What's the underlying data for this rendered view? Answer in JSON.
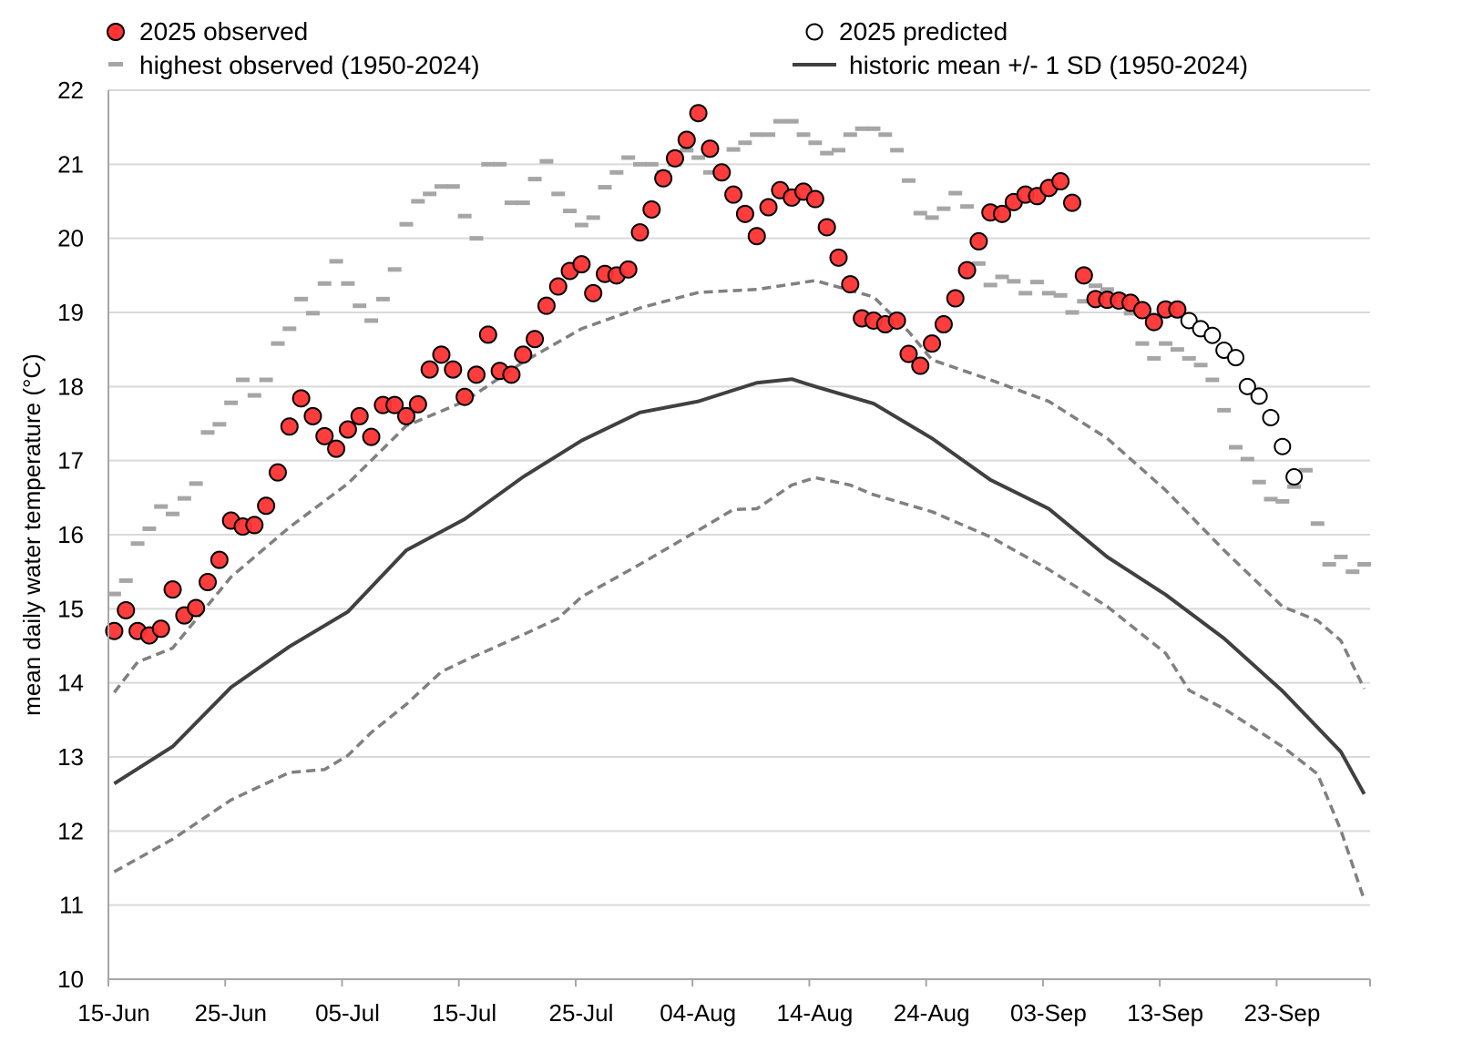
{
  "chart_data": {
    "type": "scatter",
    "title": "",
    "xlabel": "",
    "ylabel": "mean daily water temperature (°C)",
    "ylim": [
      10,
      22
    ],
    "yticks": [
      "10",
      "11",
      "12",
      "13",
      "14",
      "15",
      "16",
      "17",
      "18",
      "19",
      "20",
      "21",
      "22"
    ],
    "xlim": [
      "15-Jun",
      "30-Sep"
    ],
    "xticks": [
      "15-Jun",
      "25-Jun",
      "05-Jul",
      "15-Jul",
      "25-Jul",
      "04-Aug",
      "14-Aug",
      "24-Aug",
      "03-Sep",
      "13-Sep",
      "23-Sep"
    ],
    "grid": "horizontal",
    "legend_placement": "top",
    "colors": {
      "observed": "#ff3333",
      "highest": "#a6a6a6",
      "mean": "#404040",
      "sd": "#808080",
      "grid": "#d9d9d9"
    },
    "series": [
      {
        "name": "2025 observed",
        "kind": "markers-filled",
        "first_date": "15-Jun",
        "last_date": "14-Sep",
        "values": [
          14.7,
          14.98,
          14.7,
          14.64,
          14.73,
          15.26,
          14.91,
          15.01,
          15.36,
          15.66,
          16.19,
          16.11,
          16.13,
          16.39,
          16.84,
          17.46,
          17.84,
          17.6,
          17.33,
          17.16,
          17.42,
          17.6,
          17.32,
          17.75,
          17.75,
          17.6,
          17.76,
          18.23,
          18.43,
          18.23,
          17.86,
          18.16,
          18.7,
          18.21,
          18.16,
          18.43,
          18.64,
          19.09,
          19.35,
          19.56,
          19.65,
          19.26,
          19.52,
          19.5,
          19.58,
          20.08,
          20.39,
          20.81,
          21.08,
          21.33,
          21.69,
          21.21,
          20.89,
          20.59,
          20.33,
          20.03,
          20.42,
          20.65,
          20.55,
          20.63,
          20.53,
          20.15,
          19.74,
          19.38,
          18.92,
          18.89,
          18.84,
          18.89,
          18.44,
          18.28,
          18.58,
          18.84,
          19.19,
          19.57,
          19.96,
          20.35,
          20.33,
          20.49,
          20.59,
          20.57,
          20.68,
          20.77,
          20.48,
          19.5,
          19.18,
          19.17,
          19.16,
          19.13,
          19.03,
          18.87,
          19.04,
          19.04
        ]
      },
      {
        "name": "2025 predicted",
        "kind": "markers-open",
        "first_date": "15-Sep",
        "last_date": "24-Sep",
        "values": [
          18.89,
          18.78,
          18.69,
          18.49,
          18.39,
          18.0,
          17.87,
          17.58,
          17.19,
          16.78
        ]
      },
      {
        "name": "highest observed (1950-2024)",
        "kind": "dash-markers",
        "first_date": "15-Jun",
        "last_date": "30-Sep",
        "values": [
          15.2,
          15.38,
          15.88,
          16.08,
          16.38,
          16.28,
          16.49,
          16.69,
          17.38,
          17.49,
          17.78,
          18.09,
          17.88,
          18.09,
          18.58,
          18.78,
          19.18,
          18.99,
          19.39,
          19.69,
          19.39,
          19.09,
          18.89,
          19.18,
          19.58,
          20.19,
          20.5,
          20.6,
          20.7,
          20.7,
          20.3,
          20.0,
          21.0,
          21.0,
          20.48,
          20.48,
          20.8,
          21.04,
          20.6,
          20.37,
          20.18,
          20.28,
          20.69,
          20.89,
          21.09,
          21.0,
          21.0,
          20.89,
          21.0,
          21.19,
          21.09,
          20.89,
          20.89,
          21.2,
          21.29,
          21.4,
          21.4,
          21.58,
          21.58,
          21.4,
          21.29,
          21.15,
          21.19,
          21.4,
          21.48,
          21.48,
          21.4,
          21.19,
          20.78,
          20.34,
          20.28,
          20.4,
          20.61,
          20.43,
          19.66,
          19.37,
          19.48,
          19.42,
          19.26,
          19.41,
          19.26,
          19.23,
          19.0,
          19.15,
          19.36,
          19.31,
          19.23,
          18.99,
          18.58,
          18.38,
          18.58,
          18.5,
          18.38,
          18.29,
          18.09,
          17.68,
          17.18,
          17.02,
          16.71,
          16.48,
          16.45,
          16.65,
          16.87,
          16.15,
          15.6,
          15.7,
          15.5,
          15.6
        ]
      },
      {
        "name": "historic mean +/- 1 SD (1950-2024)",
        "kind": "solid-line",
        "points": [
          [
            "15-Jun",
            12.64
          ],
          [
            "20-Jun",
            13.14
          ],
          [
            "25-Jun",
            13.94
          ],
          [
            "30-Jun",
            14.49
          ],
          [
            "05-Jul",
            14.96
          ],
          [
            "10-Jul",
            15.79
          ],
          [
            "15-Jul",
            16.21
          ],
          [
            "20-Jul",
            16.78
          ],
          [
            "25-Jul",
            17.27
          ],
          [
            "30-Jul",
            17.65
          ],
          [
            "04-Aug",
            17.8
          ],
          [
            "09-Aug",
            18.05
          ],
          [
            "12-Aug",
            18.1
          ],
          [
            "14-Aug",
            18.0
          ],
          [
            "19-Aug",
            17.77
          ],
          [
            "24-Aug",
            17.3
          ],
          [
            "29-Aug",
            16.74
          ],
          [
            "03-Sep",
            16.35
          ],
          [
            "08-Sep",
            15.7
          ],
          [
            "13-Sep",
            15.19
          ],
          [
            "18-Sep",
            14.6
          ],
          [
            "23-Sep",
            13.89
          ],
          [
            "28-Sep",
            13.07
          ],
          [
            "30-Sep",
            12.5
          ]
        ]
      },
      {
        "kind": "dashed-line",
        "role": "mean + 1 SD",
        "points": [
          [
            "15-Jun",
            13.87
          ],
          [
            "17-Jun",
            14.28
          ],
          [
            "20-Jun",
            14.47
          ],
          [
            "25-Jun",
            15.43
          ],
          [
            "30-Jun",
            16.1
          ],
          [
            "05-Jul",
            16.69
          ],
          [
            "10-Jul",
            17.47
          ],
          [
            "15-Jul",
            17.8
          ],
          [
            "20-Jul",
            18.33
          ],
          [
            "25-Jul",
            18.78
          ],
          [
            "30-Jul",
            19.06
          ],
          [
            "04-Aug",
            19.27
          ],
          [
            "09-Aug",
            19.31
          ],
          [
            "14-Aug",
            19.43
          ],
          [
            "19-Aug",
            19.21
          ],
          [
            "22-Aug",
            18.74
          ],
          [
            "24-Aug",
            18.36
          ],
          [
            "29-Aug",
            18.09
          ],
          [
            "03-Sep",
            17.8
          ],
          [
            "08-Sep",
            17.3
          ],
          [
            "13-Sep",
            16.6
          ],
          [
            "18-Sep",
            15.79
          ],
          [
            "23-Sep",
            15.03
          ],
          [
            "26-Sep",
            14.84
          ],
          [
            "28-Sep",
            14.57
          ],
          [
            "30-Sep",
            13.92
          ]
        ]
      },
      {
        "kind": "dashed-line",
        "role": "mean - 1 SD",
        "points": [
          [
            "15-Jun",
            11.45
          ],
          [
            "20-Jun",
            11.89
          ],
          [
            "25-Jun",
            12.42
          ],
          [
            "30-Jun",
            12.79
          ],
          [
            "03-Jul",
            12.83
          ],
          [
            "05-Jul",
            13.02
          ],
          [
            "07-Jul",
            13.33
          ],
          [
            "10-Jul",
            13.71
          ],
          [
            "13-Jul",
            14.15
          ],
          [
            "15-Jul",
            14.3
          ],
          [
            "20-Jul",
            14.65
          ],
          [
            "23-Jul",
            14.87
          ],
          [
            "25-Jul",
            15.16
          ],
          [
            "30-Jul",
            15.6
          ],
          [
            "04-Aug",
            16.06
          ],
          [
            "07-Aug",
            16.34
          ],
          [
            "09-Aug",
            16.35
          ],
          [
            "12-Aug",
            16.67
          ],
          [
            "14-Aug",
            16.77
          ],
          [
            "17-Aug",
            16.67
          ],
          [
            "19-Aug",
            16.54
          ],
          [
            "24-Aug",
            16.31
          ],
          [
            "29-Aug",
            15.97
          ],
          [
            "03-Sep",
            15.53
          ],
          [
            "08-Sep",
            15.03
          ],
          [
            "13-Sep",
            14.4
          ],
          [
            "15-Sep",
            13.9
          ],
          [
            "18-Sep",
            13.65
          ],
          [
            "23-Sep",
            13.14
          ],
          [
            "26-Sep",
            12.77
          ],
          [
            "28-Sep",
            12.01
          ],
          [
            "30-Sep",
            11.07
          ]
        ]
      }
    ]
  },
  "legend": {
    "observed": "2025 observed",
    "predicted": "2025 predicted",
    "highest": "highest observed (1950-2024)",
    "mean": "historic mean +/- 1 SD (1950-2024)"
  }
}
